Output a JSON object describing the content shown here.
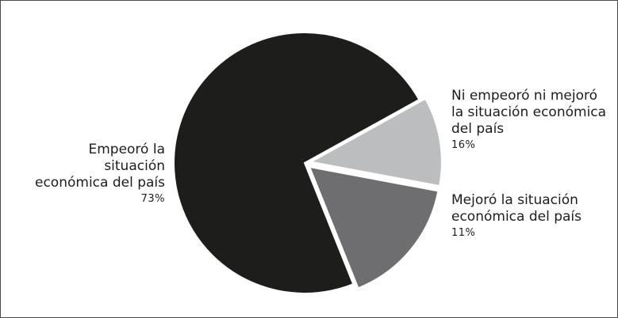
{
  "chart_data": {
    "type": "pie",
    "title": "",
    "slices": [
      {
        "label_lines": [
          "Empeoró la",
          "situación",
          "económica del país"
        ],
        "value": 73,
        "value_label": "73%",
        "color": "#1d1d1b",
        "exploded": false
      },
      {
        "label_lines": [
          "Ni empeoró ni mejoró",
          "la situación económica",
          "del país"
        ],
        "value": 16,
        "value_label": "16%",
        "color": "#6e6e70",
        "exploded": true
      },
      {
        "label_lines": [
          "Mejoró la situación",
          "económica del país"
        ],
        "value": 11,
        "value_label": "11%",
        "color": "#bcbdbf",
        "exploded": true
      }
    ],
    "start_angle_deg": 29,
    "direction": "counterclockwise",
    "legend": "none",
    "labels_placement": "outside"
  }
}
